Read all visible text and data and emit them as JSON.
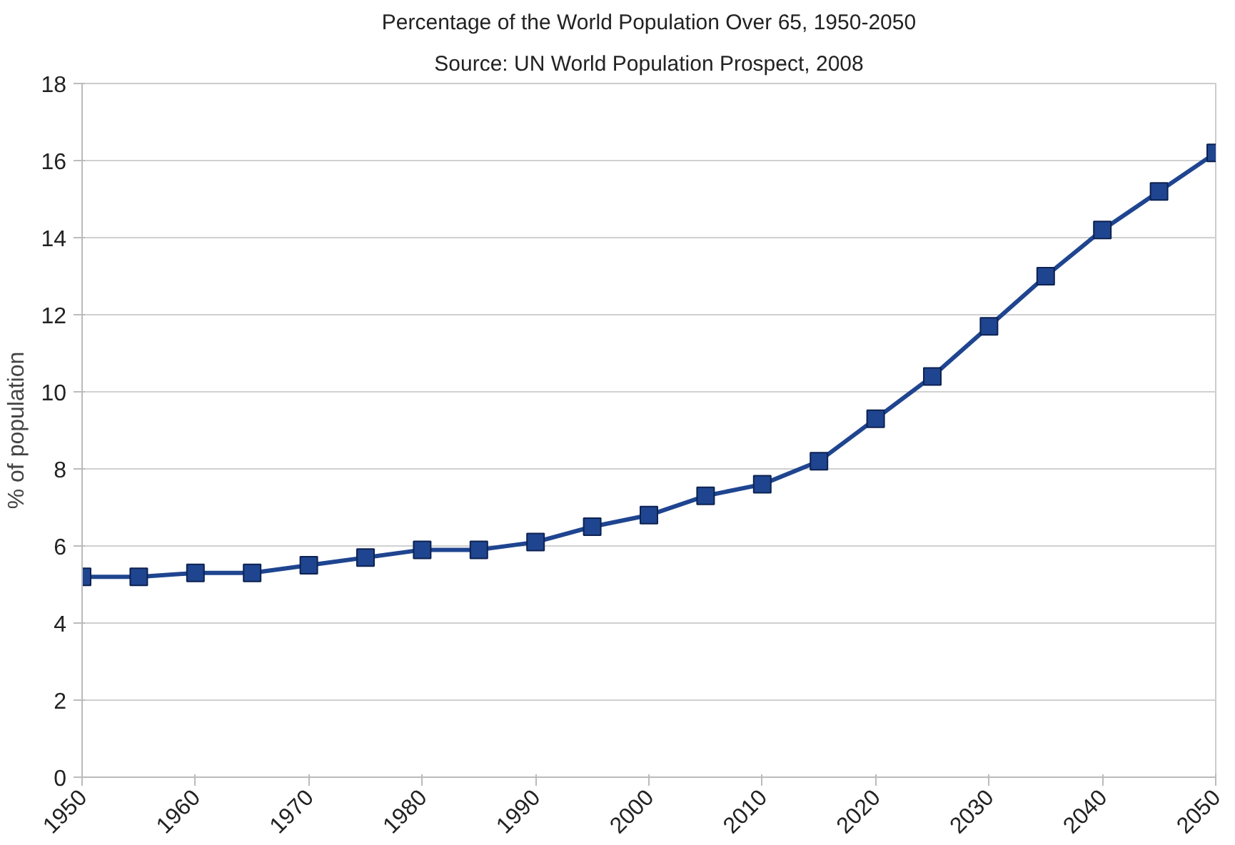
{
  "chart_data": {
    "type": "line",
    "title": "Percentage of the World Population Over 65, 1950-2050",
    "subtitle": "Source: UN World Population Prospect, 2008",
    "ylabel": "% of population",
    "x": [
      1950,
      1955,
      1960,
      1965,
      1970,
      1975,
      1980,
      1985,
      1990,
      1995,
      2000,
      2005,
      2010,
      2015,
      2020,
      2025,
      2030,
      2035,
      2040,
      2045,
      2050
    ],
    "series": [
      {
        "color": "#1f4590",
        "values": [
          5.2,
          5.2,
          5.3,
          5.3,
          5.5,
          5.7,
          5.9,
          5.9,
          6.1,
          6.5,
          6.8,
          7.3,
          7.6,
          8.2,
          9.3,
          10.4,
          11.7,
          13.0,
          14.2,
          15.2,
          16.2
        ]
      }
    ],
    "xlim": [
      1950,
      2050
    ],
    "xticks": [
      1950,
      1960,
      1970,
      1980,
      1990,
      2000,
      2010,
      2020,
      2030,
      2040,
      2050
    ],
    "ylim": [
      0,
      18
    ],
    "yticks": [
      0,
      2,
      4,
      6,
      8,
      10,
      12,
      14,
      16,
      18
    ],
    "grid": "y",
    "marker": "square",
    "line_style": "solid"
  }
}
